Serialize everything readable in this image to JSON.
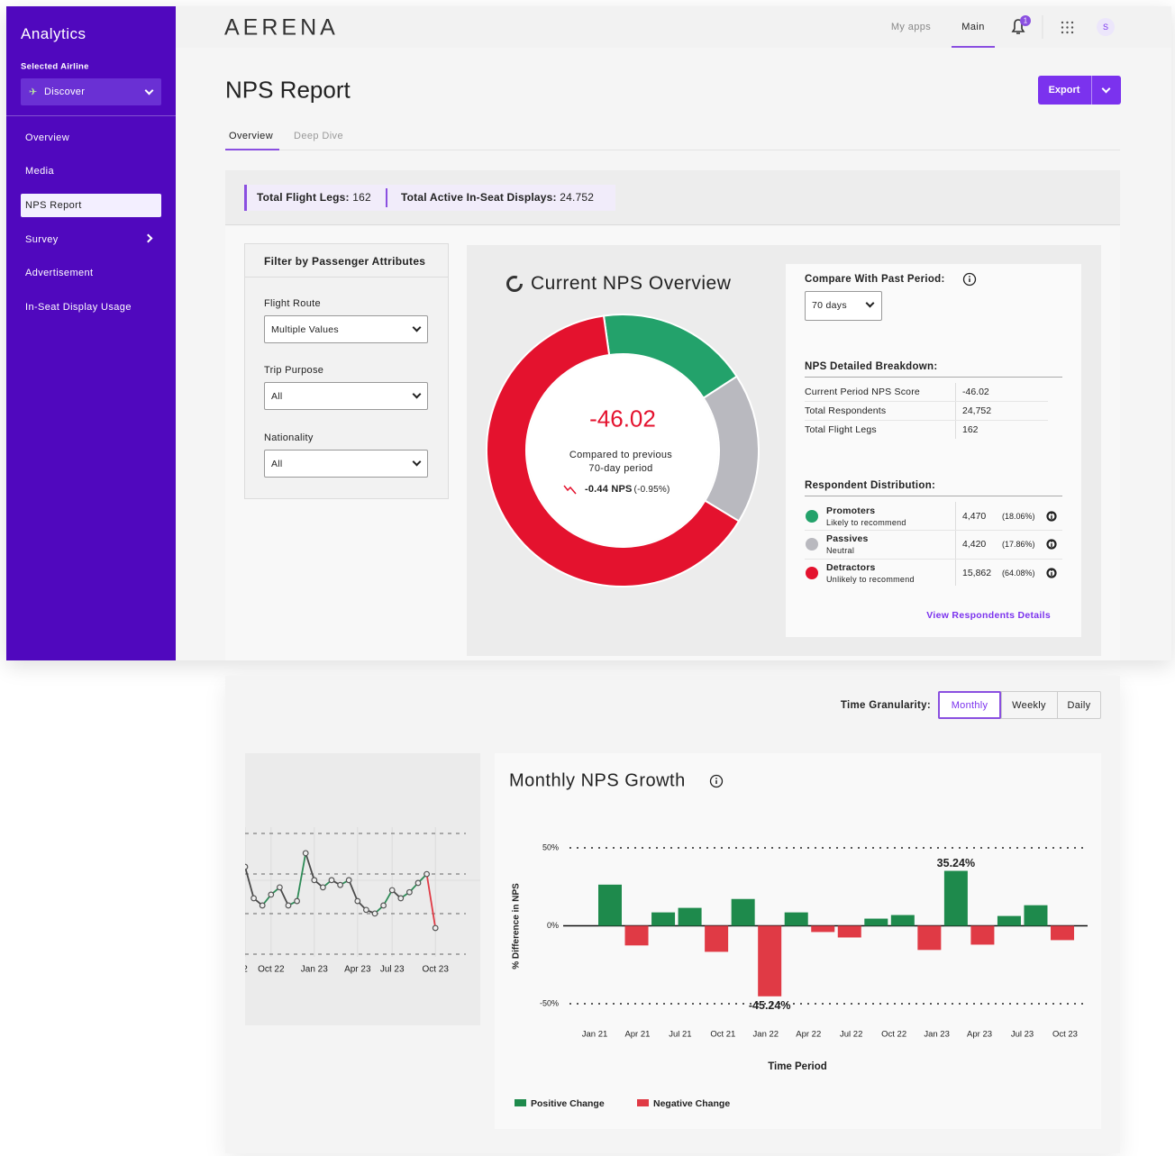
{
  "sidebar": {
    "title": "Analytics",
    "airline_label": "Selected Airline",
    "airline": "Discover",
    "nav": [
      "Overview",
      "Media",
      "NPS Report",
      "Survey",
      "Advertisement",
      "In-Seat Display Usage"
    ],
    "active_nav": "NPS Report"
  },
  "header": {
    "logo": "AERENA",
    "links": [
      "My apps",
      "Main"
    ],
    "active_link": "Main",
    "notifications": "1",
    "avatar": "S"
  },
  "page": {
    "title": "NPS Report",
    "export": "Export",
    "tabs": [
      "Overview",
      "Deep Dive"
    ],
    "active_tab": "Overview"
  },
  "stats": [
    {
      "label": "Total Flight Legs:",
      "value": "162"
    },
    {
      "label": "Total Active In-Seat Displays:",
      "value": "24.752"
    }
  ],
  "filters": {
    "title": "Filter by Passenger Attributes",
    "fields": [
      {
        "label": "Flight Route",
        "value": "Multiple Values"
      },
      {
        "label": "Trip Purpose",
        "value": "All"
      },
      {
        "label": "Nationality",
        "value": "All"
      }
    ]
  },
  "overview": {
    "title": "Current NPS Overview",
    "score": "-46.02",
    "compare_text": [
      "Compared to previous",
      "70-day period"
    ],
    "change": "-0.44 NPS",
    "change_pct": "(-0.95%)",
    "period_label": "Compare With Past Period:",
    "period": "70 days",
    "breakdown_title": "NPS Detailed Breakdown:",
    "breakdown": [
      {
        "label": "Current Period NPS Score",
        "value": "-46.02"
      },
      {
        "label": "Total Respondents",
        "value": "24,752"
      },
      {
        "label": "Total Flight Legs",
        "value": "162"
      }
    ],
    "distribution_title": "Respondent Distribution:",
    "link": "View Respondents Details",
    "donut": {
      "type": "pie",
      "categories": [
        "Promoters",
        "Passives",
        "Detractors"
      ],
      "descriptions": [
        "Likely to recommend",
        "Neutral",
        "Unlikely to recommend"
      ],
      "values": [
        4470,
        4420,
        15862
      ],
      "value_labels": [
        "4,470",
        "4,420",
        "15,862"
      ],
      "percent_labels": [
        "(18.06%)",
        "(17.86%)",
        "(64.08%)"
      ],
      "colors": [
        "#23a26b",
        "#b9b9bf",
        "#e4122e"
      ]
    }
  },
  "trend": {
    "granularity_label": "Time Granularity:",
    "granularity": [
      "Monthly",
      "Weekly",
      "Daily"
    ],
    "selected": "Monthly",
    "line_chart": {
      "type": "line",
      "categories": [
        "2",
        null,
        null,
        "Oct 22",
        null,
        null,
        null,
        null,
        "Jan 23",
        null,
        null,
        null,
        null,
        "Apr 23",
        null,
        null,
        null,
        "Jul 23",
        null,
        null,
        null,
        null,
        "Oct 23"
      ],
      "values": [
        2.17,
        1.39,
        1.21,
        1.48,
        1.66,
        1.21,
        1.32,
        2.51,
        1.84,
        1.66,
        1.84,
        1.72,
        1.84,
        1.32,
        1.1,
        1.01,
        1.21,
        1.59,
        1.39,
        1.54,
        1.77,
        1.99,
        0.65
      ],
      "ylim": [
        0,
        3
      ],
      "segment_colors": [
        "#4a4a4a",
        "#4a4a4a",
        "#2e8b57",
        "#2e8b57",
        "#4a4a4a",
        "#2e8b57",
        "#2e8b57",
        "#4a4a4a",
        "#4a4a4a",
        "#2e8b57",
        "#4a4a4a",
        "#2e8b57",
        "#4a4a4a",
        "#4a4a4a",
        "#4a4a4a",
        "#2e8b57",
        "#2e8b57",
        "#4a4a4a",
        "#2e8b57",
        "#2e8b57",
        "#2e8b57",
        "#e03a45"
      ]
    },
    "bar_chart": {
      "type": "bar",
      "title": "Monthly NPS Growth",
      "ylabel": "% Difference in NPS",
      "xlabel": "Time Period",
      "x_labels": [
        "Jan 21",
        "Apr 21",
        "Jul 21",
        "Oct 21",
        "Jan 22",
        "Apr 22",
        "Jul 22",
        "Oct 22",
        "Jan 23",
        "Apr 23",
        "Jul 23",
        "Oct 23"
      ],
      "values": [
        26.4,
        -12.6,
        8.6,
        11.5,
        -16.7,
        17.2,
        -45.24,
        8.6,
        -4.0,
        -7.5,
        4.6,
        6.9,
        -15.5,
        35.24,
        -12.1,
        6.3,
        13.2,
        -9.2
      ],
      "value_labels": [
        null,
        null,
        null,
        null,
        null,
        null,
        "-45.24%",
        null,
        null,
        null,
        null,
        null,
        null,
        "35.24%",
        null,
        null,
        null,
        null
      ],
      "ylim": [
        -50,
        50
      ],
      "yticks": [
        {
          "value": 50,
          "label": "50%"
        },
        {
          "value": 0,
          "label": "0%"
        },
        {
          "value": -50,
          "label": "-50%"
        }
      ],
      "legend": [
        {
          "name": "Positive Change",
          "color": "#1e8a4c"
        },
        {
          "name": "Negative Change",
          "color": "#e03a45"
        }
      ]
    }
  }
}
